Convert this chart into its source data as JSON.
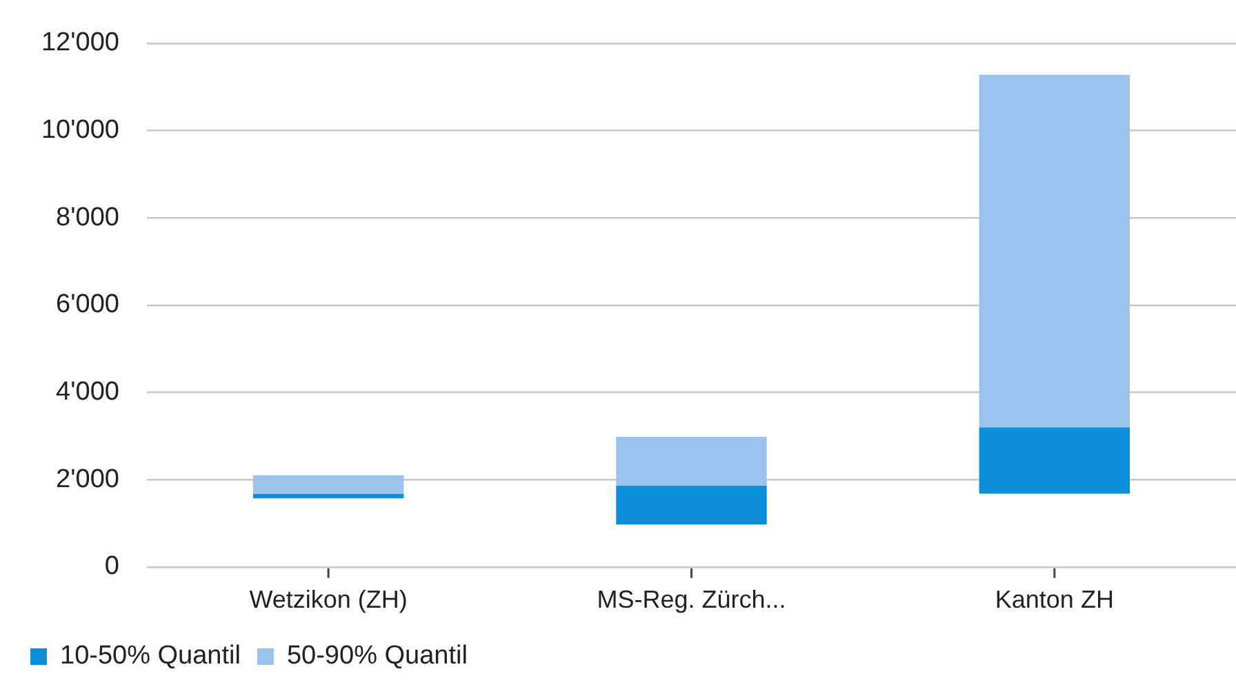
{
  "chart_data": {
    "type": "bar",
    "categories": [
      "Wetzikon (ZH)",
      "MS-Reg. Zürch...",
      "Kanton ZH"
    ],
    "series": [
      {
        "name": "10-50% Quantil",
        "color": "#0a8fd8",
        "base": [
          1570,
          970,
          1680
        ],
        "values": [
          100,
          890,
          1520
        ]
      },
      {
        "name": "50-90% Quantil",
        "color": "#9cc3ec",
        "base": [
          1670,
          1860,
          3200
        ],
        "values": [
          430,
          1120,
          8080
        ]
      }
    ],
    "ylim": [
      0,
      12000
    ],
    "yticks": [
      {
        "value": 0,
        "label": "0"
      },
      {
        "value": 2000,
        "label": "2'000"
      },
      {
        "value": 4000,
        "label": "4'000"
      },
      {
        "value": 6000,
        "label": "6'000"
      },
      {
        "value": 8000,
        "label": "8'000"
      },
      {
        "value": 10000,
        "label": "10'000"
      },
      {
        "value": 12000,
        "label": "12'000"
      }
    ],
    "grid": "y",
    "legend": "bottom left"
  }
}
